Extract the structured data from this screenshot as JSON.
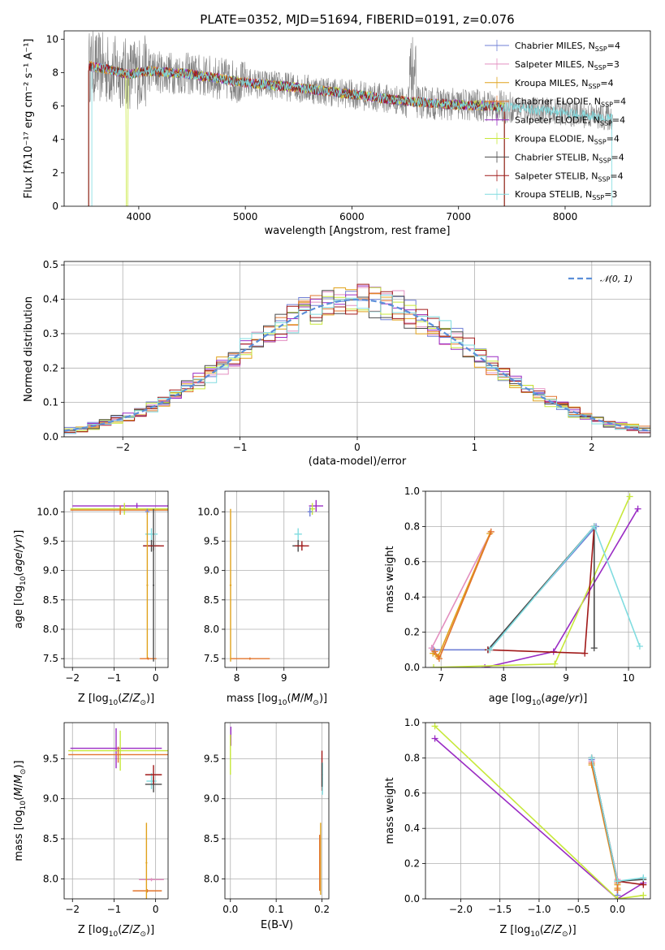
{
  "figure_title": "PLATE=0352, MJD=51694, FIBERID=0191, z=0.076",
  "colors": {
    "Chabrier MILES": "#6f7fd6",
    "Salpeter MILES": "#e38fc0",
    "Kroupa MILES": "#e0a21c",
    "Chabrier ELODIE": "#e2742c",
    "Salpeter ELODIE": "#9a2cc4",
    "Kroupa ELODIE": "#c7e83a",
    "Chabrier STELIB": "#4a4a4a",
    "Salpeter STELIB": "#a01818",
    "Kroupa STELIB": "#80dce0",
    "data": "#808080",
    "normal": "#5b8fd9"
  },
  "chart_data": [
    {
      "type": "line",
      "id": "spectrum",
      "title": "PLATE=0352, MJD=51694, FIBERID=0191, z=0.076",
      "xlabel": "wavelength [Angstrom, rest frame]",
      "ylabel": "Flux [fλ10⁻¹⁷ erg cm⁻² s⁻¹ A⁻¹]",
      "xlim": [
        3300,
        8800
      ],
      "ylim": [
        0,
        10.5
      ],
      "xticks": [
        4000,
        5000,
        6000,
        7000,
        8000
      ],
      "yticks": [
        0,
        2,
        4,
        6,
        8,
        10
      ],
      "grid": false,
      "legend": "right",
      "legend_entries": [
        {
          "name": "Chabrier MILES",
          "text": "Chabrier MILES, N",
          "sub": "SSP",
          "suffix": "=4"
        },
        {
          "name": "Salpeter MILES",
          "text": "Salpeter MILES, N",
          "sub": "SSP",
          "suffix": "=3"
        },
        {
          "name": "Kroupa MILES",
          "text": "Kroupa MILES, N",
          "sub": "SSP",
          "suffix": "=4"
        },
        {
          "name": "Chabrier ELODIE",
          "text": "Chabrier ELODIE, N",
          "sub": "SSP",
          "suffix": "=4"
        },
        {
          "name": "Salpeter ELODIE",
          "text": "Salpeter ELODIE, N",
          "sub": "SSP",
          "suffix": "=4"
        },
        {
          "name": "Kroupa ELODIE",
          "text": "Kroupa ELODIE, N",
          "sub": "SSP",
          "suffix": "=4"
        },
        {
          "name": "Chabrier STELIB",
          "text": "Chabrier STELIB, N",
          "sub": "SSP",
          "suffix": "=4"
        },
        {
          "name": "Salpeter STELIB",
          "text": "Salpeter STELIB, N",
          "sub": "SSP",
          "suffix": "=4"
        },
        {
          "name": "Kroupa STELIB",
          "text": "Kroupa STELIB, N",
          "sub": "SSP",
          "suffix": "=3"
        }
      ],
      "continuum": [
        [
          3520,
          8.4
        ],
        [
          3700,
          8.2
        ],
        [
          3900,
          7.9
        ],
        [
          4100,
          8.1
        ],
        [
          4500,
          7.9
        ],
        [
          5000,
          7.4
        ],
        [
          5500,
          7.1
        ],
        [
          6000,
          6.7
        ],
        [
          6500,
          6.3
        ],
        [
          6900,
          6.1
        ],
        [
          7300,
          6.0
        ],
        [
          7500,
          5.9
        ],
        [
          8000,
          5.6
        ],
        [
          8400,
          5.3
        ]
      ],
      "model_range": [
        3530,
        7430
      ],
      "kroupa_stelib_range": [
        3560,
        8440
      ]
    },
    {
      "type": "line",
      "id": "residuals",
      "xlabel": "(data-model)/error",
      "ylabel": "Normed distribution",
      "xlim": [
        -2.5,
        2.5
      ],
      "ylim": [
        0,
        0.51
      ],
      "xticks": [
        -2,
        -1,
        0,
        1,
        2
      ],
      "yticks": [
        0.0,
        0.1,
        0.2,
        0.3,
        0.4,
        0.5
      ],
      "grid": true,
      "legend": "top-right",
      "normal_label": "𝒩(0, 1)",
      "bin_width": 0.1
    },
    {
      "type": "scatter",
      "id": "age-z",
      "xlabel": "Z [log10(Z/Z⊙)]",
      "ylabel": "age [log10(age/yr)]",
      "xlim": [
        -2.2,
        0.3
      ],
      "ylim": [
        7.35,
        10.35
      ],
      "xticks": [
        -2,
        -1,
        0
      ],
      "yticks": [
        7.5,
        8.0,
        8.5,
        9.0,
        9.5,
        10.0
      ],
      "grid": true,
      "errorbars": [
        {
          "name": "Salpeter ELODIE",
          "x": -0.45,
          "y": 10.1,
          "xerr": 1.55,
          "yerr": 0.05
        },
        {
          "name": "Kroupa ELODIE",
          "x": -0.75,
          "y": 10.05,
          "xerr": 1.3,
          "yerr": 0.1
        },
        {
          "name": "Chabrier ELODIE",
          "x": -0.85,
          "y": 10.03,
          "xerr": 1.2,
          "yerr": 0.08
        },
        {
          "name": "Chabrier MILES",
          "x": -0.2,
          "y": 10.0,
          "xerr": 0.05,
          "yerr": 0.05
        },
        {
          "name": "Kroupa STELIB",
          "x": -0.1,
          "y": 9.62,
          "xerr": 0.15,
          "yerr": 0.1
        },
        {
          "name": "Chabrier STELIB",
          "x": -0.1,
          "y": 9.42,
          "xerr": 0.2,
          "yerr": 0.1
        },
        {
          "name": "Salpeter STELIB",
          "x": -0.05,
          "y": 9.42,
          "xerr": 0.25,
          "yerr": 0.08
        },
        {
          "name": "Kroupa MILES",
          "x": -0.2,
          "y": 8.75,
          "xerr": 0.02,
          "yerr": 1.25
        },
        {
          "name": "Chabrier ELODIE",
          "x": -0.18,
          "y": 7.5,
          "xerr": 0.2,
          "yerr": 0.02
        },
        {
          "name": "Chabrier STELIB",
          "x": -0.05,
          "y": 8.75,
          "xerr": 0.02,
          "yerr": 1.3
        }
      ]
    },
    {
      "type": "scatter",
      "id": "age-mass",
      "xlabel": "mass [log10(M/M⊙)]",
      "ylabel": "",
      "xlim": [
        7.75,
        9.95
      ],
      "ylim": [
        7.35,
        10.35
      ],
      "xticks": [
        8,
        9
      ],
      "yticks": [
        7.5,
        8.0,
        8.5,
        9.0,
        9.5,
        10.0
      ],
      "grid": true,
      "errorbars": [
        {
          "name": "Salpeter ELODIE",
          "x": 9.68,
          "y": 10.1,
          "xerr": 0.15,
          "yerr": 0.1
        },
        {
          "name": "Kroupa ELODIE",
          "x": 9.6,
          "y": 10.05,
          "xerr": 0.06,
          "yerr": 0.1
        },
        {
          "name": "Chabrier MILES",
          "x": 9.55,
          "y": 10.0,
          "xerr": 0.05,
          "yerr": 0.08
        },
        {
          "name": "Kroupa STELIB",
          "x": 9.3,
          "y": 9.62,
          "xerr": 0.08,
          "yerr": 0.1
        },
        {
          "name": "Chabrier STELIB",
          "x": 9.3,
          "y": 9.42,
          "xerr": 0.12,
          "yerr": 0.1
        },
        {
          "name": "Salpeter STELIB",
          "x": 9.38,
          "y": 9.42,
          "xerr": 0.15,
          "yerr": 0.08
        },
        {
          "name": "Chabrier ELODIE",
          "x": 8.28,
          "y": 7.5,
          "xerr": 0.42,
          "yerr": 0.02
        },
        {
          "name": "Kroupa MILES",
          "x": 7.87,
          "y": 8.75,
          "xerr": 0.02,
          "yerr": 1.3
        }
      ]
    },
    {
      "type": "line",
      "id": "weight-age",
      "xlabel": "age [log10(age/yr)]",
      "ylabel": "mass weight",
      "xlim": [
        6.75,
        10.35
      ],
      "ylim": [
        0,
        1.0
      ],
      "xticks": [
        7,
        8,
        9,
        10
      ],
      "yticks": [
        0.0,
        0.2,
        0.4,
        0.6,
        0.8,
        1.0
      ],
      "grid": true,
      "series": [
        {
          "name": "Chabrier MILES",
          "x": [
            6.88,
            7.75,
            9.48
          ],
          "y": [
            0.1,
            0.1,
            0.8
          ]
        },
        {
          "name": "Salpeter MILES",
          "x": [
            6.85,
            7.8
          ],
          "y": [
            0.11,
            0.77
          ]
        },
        {
          "name": "Kroupa MILES",
          "x": [
            6.87,
            6.95,
            7.78
          ],
          "y": [
            0.08,
            0.06,
            0.76
          ]
        },
        {
          "name": "Chabrier ELODIE",
          "x": [
            6.9,
            6.97,
            7.8
          ],
          "y": [
            0.09,
            0.05,
            0.77
          ]
        },
        {
          "name": "Salpeter ELODIE",
          "x": [
            7.7,
            8.8,
            10.15
          ],
          "y": [
            0.0,
            0.09,
            0.9
          ]
        },
        {
          "name": "Kroupa ELODIE",
          "x": [
            6.88,
            8.82,
            10.02
          ],
          "y": [
            0.0,
            0.02,
            0.97
          ]
        },
        {
          "name": "Chabrier STELIB",
          "x": [
            7.75,
            9.45,
            9.45
          ],
          "y": [
            0.1,
            0.8,
            0.11
          ]
        },
        {
          "name": "Salpeter STELIB",
          "x": [
            7.75,
            9.3,
            9.45
          ],
          "y": [
            0.1,
            0.08,
            0.8
          ]
        },
        {
          "name": "Kroupa STELIB",
          "x": [
            7.78,
            9.45,
            10.18
          ],
          "y": [
            0.1,
            0.8,
            0.12
          ]
        }
      ]
    },
    {
      "type": "scatter",
      "id": "mass-z",
      "xlabel": "Z [log10(Z/Z⊙)]",
      "ylabel": "mass [log10(M/M⊙)]",
      "xlim": [
        -2.2,
        0.3
      ],
      "ylim": [
        7.75,
        9.95
      ],
      "xticks": [
        -2,
        -1,
        0
      ],
      "yticks": [
        8.0,
        8.5,
        9.0,
        9.5
      ],
      "grid": true,
      "errorbars": [
        {
          "name": "Salpeter ELODIE",
          "x": -0.95,
          "y": 9.63,
          "xerr": 1.1,
          "yerr": 0.25
        },
        {
          "name": "Kroupa ELODIE",
          "x": -0.85,
          "y": 9.6,
          "xerr": 1.25,
          "yerr": 0.25
        },
        {
          "name": "Chabrier ELODIE",
          "x": -0.9,
          "y": 9.55,
          "xerr": 1.2,
          "yerr": 0.1
        },
        {
          "name": "Kroupa STELIB",
          "x": -0.1,
          "y": 9.22,
          "xerr": 0.12,
          "yerr": 0.1
        },
        {
          "name": "Chabrier STELIB",
          "x": -0.05,
          "y": 9.18,
          "xerr": 0.2,
          "yerr": 0.1
        },
        {
          "name": "Salpeter STELIB",
          "x": -0.05,
          "y": 9.3,
          "xerr": 0.2,
          "yerr": 0.12
        },
        {
          "name": "Salpeter MILES",
          "x": -0.1,
          "y": 7.99,
          "xerr": 0.3,
          "yerr": 0.02
        },
        {
          "name": "Chabrier ELODIE",
          "x": -0.2,
          "y": 7.85,
          "xerr": 0.35,
          "yerr": 0.02
        },
        {
          "name": "Kroupa MILES",
          "x": -0.22,
          "y": 8.2,
          "xerr": 0.02,
          "yerr": 0.5
        }
      ]
    },
    {
      "type": "scatter",
      "id": "mass-ebv",
      "xlabel": "E(B-V)",
      "ylabel": "",
      "xlim": [
        -0.012,
        0.215
      ],
      "ylim": [
        7.75,
        9.95
      ],
      "xticks": [
        0.0,
        0.1,
        0.2
      ],
      "yticks": [
        8.0,
        8.5,
        9.0,
        9.5
      ],
      "grid": true,
      "errorbars": [
        {
          "name": "Salpeter ELODIE",
          "x": 0.001,
          "y": 9.78,
          "xerr": 0.001,
          "yerr": 0.12
        },
        {
          "name": "Kroupa ELODIE",
          "x": 0.0,
          "y": 9.55,
          "xerr": 0.001,
          "yerr": 0.25
        },
        {
          "name": "Salpeter STELIB",
          "x": 0.2,
          "y": 9.35,
          "xerr": 0.001,
          "yerr": 0.25
        },
        {
          "name": "Kroupa STELIB",
          "x": 0.201,
          "y": 9.25,
          "xerr": 0.001,
          "yerr": 0.2
        },
        {
          "name": "Chabrier STELIB",
          "x": 0.2,
          "y": 9.3,
          "xerr": 0.001,
          "yerr": 0.15
        },
        {
          "name": "Kroupa MILES",
          "x": 0.197,
          "y": 8.25,
          "xerr": 0.001,
          "yerr": 0.45
        },
        {
          "name": "Chabrier ELODIE",
          "x": 0.195,
          "y": 8.2,
          "xerr": 0.001,
          "yerr": 0.35
        }
      ]
    },
    {
      "type": "line",
      "id": "weight-z",
      "xlabel": "Z [log10(Z/Z⊙)]",
      "ylabel": "mass weight",
      "xlim": [
        -2.45,
        0.42
      ],
      "ylim": [
        0,
        1.0
      ],
      "xticks": [
        -2.0,
        -1.5,
        -1.0,
        -0.5,
        0.0
      ],
      "yticks": [
        0.0,
        0.2,
        0.4,
        0.6,
        0.8,
        1.0
      ],
      "grid": true,
      "series": [
        {
          "name": "Chabrier MILES",
          "x": [
            -0.33,
            0.0,
            0.0
          ],
          "y": [
            0.79,
            0.1,
            0.02
          ]
        },
        {
          "name": "Salpeter MILES",
          "x": [
            -0.33,
            0.0
          ],
          "y": [
            0.78,
            0.11
          ]
        },
        {
          "name": "Kroupa MILES",
          "x": [
            -0.33,
            0.0,
            0.0
          ],
          "y": [
            0.76,
            0.08,
            0.06
          ]
        },
        {
          "name": "Chabrier ELODIE",
          "x": [
            -0.33,
            0.0,
            0.0
          ],
          "y": [
            0.77,
            0.09,
            0.05
          ]
        },
        {
          "name": "Salpeter ELODIE",
          "x": [
            -2.33,
            0.0,
            0.33
          ],
          "y": [
            0.91,
            0.0,
            0.09
          ]
        },
        {
          "name": "Kroupa ELODIE",
          "x": [
            -2.33,
            0.0,
            0.33
          ],
          "y": [
            0.98,
            0.0,
            0.02
          ]
        },
        {
          "name": "Chabrier STELIB",
          "x": [
            -0.33,
            0.0,
            0.33
          ],
          "y": [
            0.8,
            0.1,
            0.11
          ]
        },
        {
          "name": "Salpeter STELIB",
          "x": [
            -0.33,
            0.0,
            0.33
          ],
          "y": [
            0.8,
            0.1,
            0.08
          ]
        },
        {
          "name": "Kroupa STELIB",
          "x": [
            -0.33,
            0.0,
            0.33
          ],
          "y": [
            0.8,
            0.1,
            0.12
          ]
        }
      ]
    }
  ]
}
